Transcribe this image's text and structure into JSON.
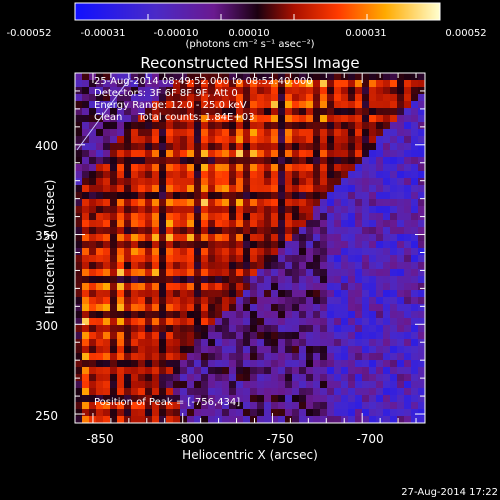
{
  "colorbar": {
    "tick_labels": [
      "-0.00052",
      "-0.00031",
      "-0.00010",
      "0.00010",
      "0.00031",
      "0.00052"
    ],
    "units": "(photons cm⁻² s⁻¹ asec⁻²)",
    "colors": [
      "#1a1aff",
      "#6a1aa8",
      "#7a1a6a",
      "#cc2200",
      "#ff9900",
      "#ffff80"
    ]
  },
  "title": "Reconstructed RHESSI Image",
  "annotations": {
    "time_range": "25-Aug-2014 08:49:52.000 to 08:52:40.000",
    "detectors": "Detectors: 3F 6F 8F 9F, Att 0",
    "energy": "Energy Range: 12.0 - 25.0 keV",
    "method": "Clean     Total counts: 1.84E+03",
    "peak": "Position of Peak = [-756,434]"
  },
  "footer_date": "27-Aug-2014 17:22",
  "chart_data": {
    "type": "heatmap",
    "title": "Reconstructed RHESSI Image",
    "xlabel": "Heliocentric X (arcsec)",
    "ylabel": "Heliocentric Y (arcsec)",
    "xlim": [
      -860,
      -665
    ],
    "ylim": [
      245,
      440
    ],
    "x_ticks": [
      -850,
      -800,
      -750,
      -700
    ],
    "y_ticks": [
      250,
      300,
      350,
      400
    ],
    "zlim": [
      -0.00052,
      0.00052
    ],
    "peak_position": [
      -756,
      434
    ]
  }
}
